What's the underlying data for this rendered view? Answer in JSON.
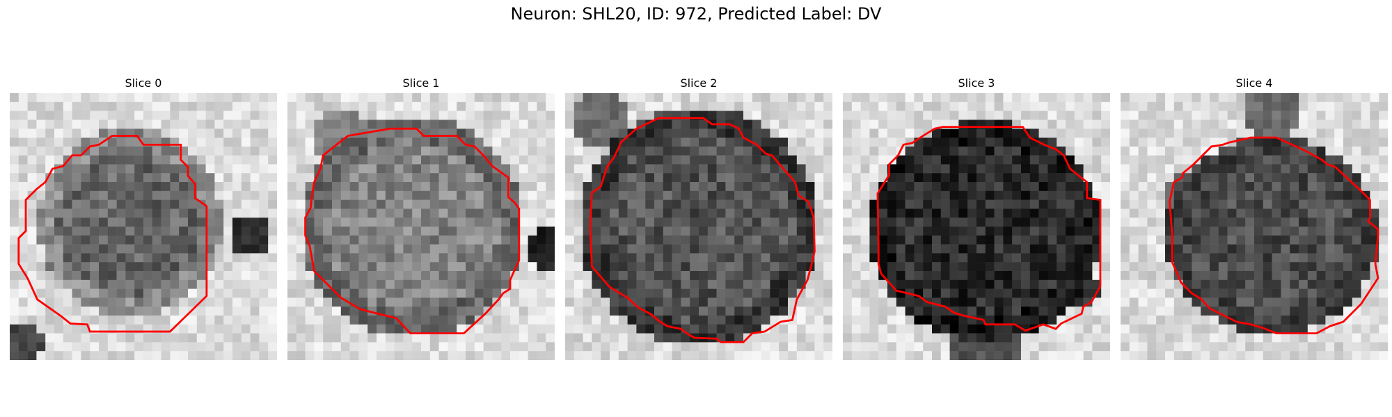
{
  "figure": {
    "title": "Neuron: SHL20, ID: 972, Predicted Label: DV"
  },
  "panels": [
    {
      "title": "Slice 0"
    },
    {
      "title": "Slice 1"
    },
    {
      "title": "Slice 2"
    },
    {
      "title": "Slice 3"
    },
    {
      "title": "Slice 4"
    }
  ],
  "colors": {
    "contour": "#ff0000",
    "background": "#ffffff"
  }
}
